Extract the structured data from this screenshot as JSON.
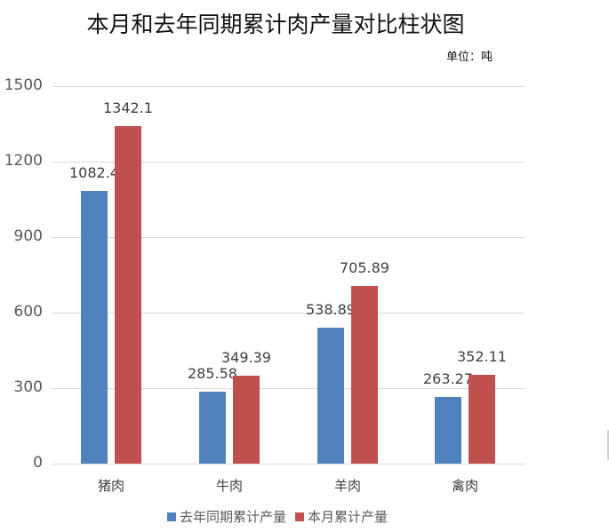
{
  "chart_data": {
    "type": "bar",
    "title": "本月和去年同期累计肉产量对比柱状图",
    "unit_label": "单位：吨",
    "xlabel": "",
    "ylabel": "",
    "categories": [
      "猪肉",
      "牛肉",
      "羊肉",
      "禽肉"
    ],
    "series": [
      {
        "name": "去年同期累计产量",
        "color": "#4f81bd",
        "values": [
          1082.4,
          285.58,
          538.89,
          263.27
        ],
        "labels": [
          "1082.4",
          "285.58",
          "538.89",
          "263.27"
        ]
      },
      {
        "name": "本月累计产量",
        "color": "#c0504d",
        "values": [
          1342.1,
          349.39,
          705.89,
          352.11
        ],
        "labels": [
          "1342.1",
          "349.39",
          "705.89",
          "352.11"
        ]
      }
    ],
    "yticks": [
      "0",
      "300",
      "600",
      "900",
      "1200",
      "1500"
    ],
    "ylim": [
      0,
      1500
    ],
    "grid": true,
    "legend_position": "bottom"
  }
}
